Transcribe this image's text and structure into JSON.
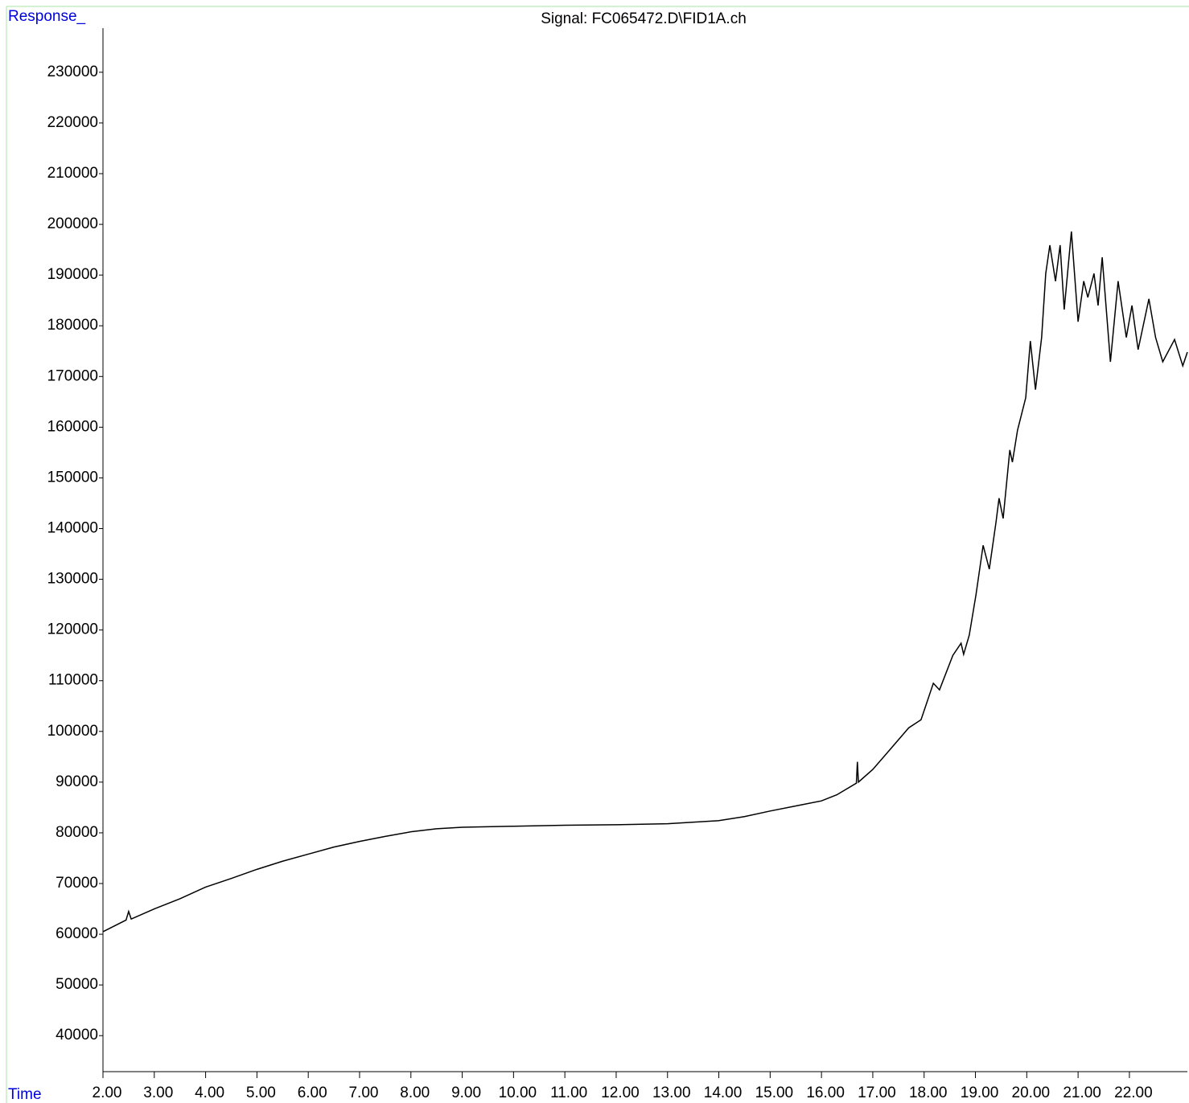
{
  "chart_data": {
    "type": "line",
    "title": "Signal: FC065472.D\\FID1A.ch",
    "y_label": "Response_",
    "x_label": "Time",
    "color": "#000000",
    "x": [
      2.0,
      2.45,
      2.5,
      2.55,
      3.0,
      3.5,
      4.0,
      4.5,
      5.0,
      5.5,
      6.0,
      6.5,
      7.0,
      7.5,
      8.0,
      8.5,
      9.0,
      10.0,
      11.0,
      12.0,
      13.0,
      14.0,
      14.5,
      15.0,
      15.5,
      16.0,
      16.3,
      16.68,
      16.7,
      16.72,
      17.0,
      17.3,
      17.7,
      17.94,
      18.18,
      18.3,
      18.56,
      18.72,
      18.77,
      18.88,
      19.01,
      19.15,
      19.27,
      19.4,
      19.46,
      19.54,
      19.67,
      19.72,
      19.82,
      19.98,
      20.07,
      20.17,
      20.29,
      20.37,
      20.45,
      20.56,
      20.65,
      20.73,
      20.87,
      21.0,
      21.11,
      21.19,
      21.31,
      21.39,
      21.47,
      21.63,
      21.78,
      21.94,
      22.05,
      22.17,
      22.38,
      22.51,
      22.65,
      22.88,
      23.04,
      23.13
    ],
    "values": [
      60500,
      62800,
      64500,
      63000,
      65000,
      67000,
      69300,
      71000,
      72800,
      74400,
      75800,
      77200,
      78300,
      79300,
      80200,
      80800,
      81100,
      81300,
      81500,
      81600,
      81800,
      82400,
      83200,
      84300,
      85300,
      86300,
      87500,
      89800,
      94000,
      90000,
      92500,
      96000,
      100700,
      102300,
      109500,
      108200,
      115000,
      117400,
      115200,
      119000,
      126900,
      136700,
      132000,
      141200,
      146000,
      142000,
      155500,
      153100,
      159400,
      165800,
      177000,
      167400,
      177700,
      190300,
      195900,
      188800,
      195900,
      183200,
      198600,
      180800,
      188800,
      185600,
      190300,
      184000,
      193500,
      172900,
      188800,
      177700,
      184000,
      175300,
      185300,
      177700,
      172900,
      177300,
      172100,
      174800
    ],
    "xlim": [
      2.0,
      23.13
    ],
    "ylim": [
      32900,
      238700
    ],
    "yticks": [
      40000,
      50000,
      60000,
      70000,
      80000,
      90000,
      100000,
      110000,
      120000,
      130000,
      140000,
      150000,
      160000,
      170000,
      180000,
      190000,
      200000,
      210000,
      220000,
      230000
    ],
    "xticks": [
      {
        "value": 2,
        "label": "2.00"
      },
      {
        "value": 3,
        "label": "3.00"
      },
      {
        "value": 4,
        "label": "4.00"
      },
      {
        "value": 5,
        "label": "5.00"
      },
      {
        "value": 6,
        "label": "6.00"
      },
      {
        "value": 7,
        "label": "7.00"
      },
      {
        "value": 8,
        "label": "8.00"
      },
      {
        "value": 9,
        "label": "9.00"
      },
      {
        "value": 10,
        "label": "10.00"
      },
      {
        "value": 11,
        "label": "11.00"
      },
      {
        "value": 12,
        "label": "12.00"
      },
      {
        "value": 13,
        "label": "13.00"
      },
      {
        "value": 14,
        "label": "14.00"
      },
      {
        "value": 15,
        "label": "15.00"
      },
      {
        "value": 16,
        "label": "16.00"
      },
      {
        "value": 17,
        "label": "17.00"
      },
      {
        "value": 18,
        "label": "18.00"
      },
      {
        "value": 19,
        "label": "19.00"
      },
      {
        "value": 20,
        "label": "20.00"
      },
      {
        "value": 21,
        "label": "21.00"
      },
      {
        "value": 22,
        "label": "22.00"
      }
    ]
  }
}
